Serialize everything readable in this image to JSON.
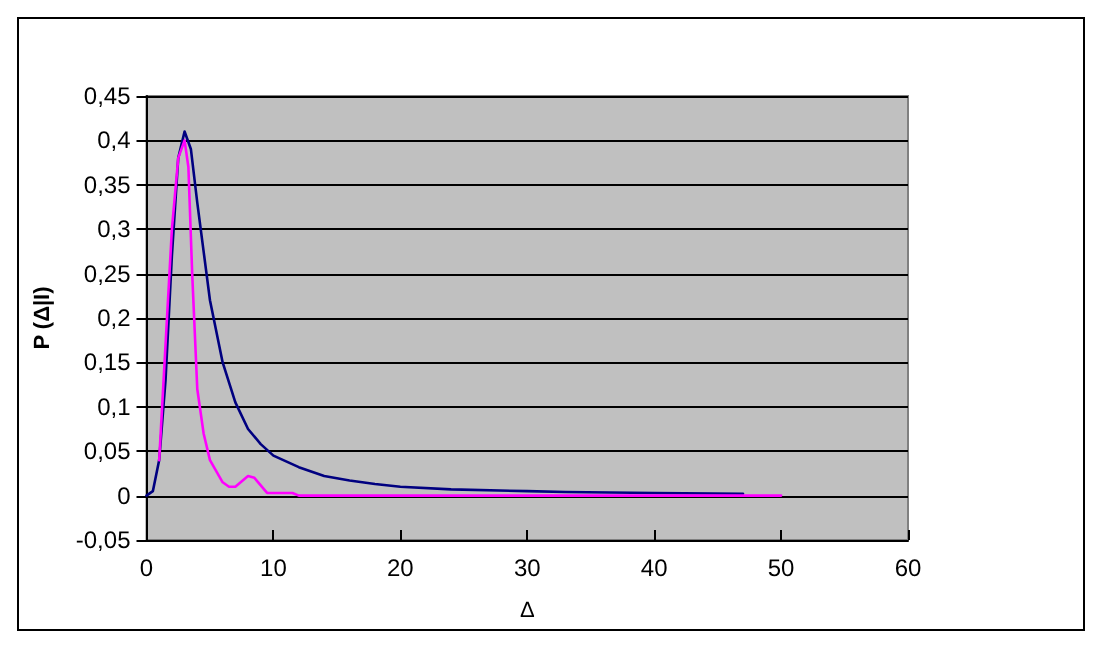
{
  "chart_data": {
    "type": "line",
    "xlabel": "Δ",
    "ylabel": "P (Δ|I)",
    "xlim": [
      0,
      60
    ],
    "xticks": [
      0,
      10,
      20,
      30,
      40,
      50,
      60
    ],
    "ylim": [
      -0.05,
      0.45
    ],
    "yticks": [
      {
        "value": -0.05,
        "label": "-0,05"
      },
      {
        "value": 0,
        "label": "0"
      },
      {
        "value": 0.05,
        "label": "0,05"
      },
      {
        "value": 0.1,
        "label": "0,1"
      },
      {
        "value": 0.15,
        "label": "0,15"
      },
      {
        "value": 0.2,
        "label": "0,2"
      },
      {
        "value": 0.25,
        "label": "0,25"
      },
      {
        "value": 0.3,
        "label": "0,3"
      },
      {
        "value": 0.35,
        "label": "0,35"
      },
      {
        "value": 0.4,
        "label": "0,4"
      },
      {
        "value": 0.45,
        "label": "0,45"
      }
    ],
    "grid": "y",
    "marker": "none",
    "line_style": "solid",
    "series": [
      {
        "color": "#000080",
        "x": [
          0,
          0.5,
          1,
          1.5,
          2,
          2.5,
          3,
          3.5,
          4,
          5,
          6,
          7,
          8,
          9,
          10,
          12,
          14,
          16,
          18,
          20,
          24,
          30,
          33,
          40,
          47
        ],
        "values": [
          0,
          0.005,
          0.04,
          0.13,
          0.27,
          0.38,
          0.41,
          0.39,
          0.33,
          0.22,
          0.15,
          0.105,
          0.075,
          0.058,
          0.045,
          0.032,
          0.022,
          0.017,
          0.013,
          0.01,
          0.007,
          0.005,
          0.004,
          0.003,
          0.002
        ]
      },
      {
        "color": "#ff00ff",
        "x": [
          1,
          1.5,
          2,
          2.5,
          3,
          3.3,
          3.6,
          4,
          4.5,
          5,
          6,
          6.5,
          7,
          8,
          8.5,
          9.5,
          11.5,
          12,
          50
        ],
        "values": [
          0.04,
          0.17,
          0.3,
          0.38,
          0.4,
          0.37,
          0.25,
          0.12,
          0.07,
          0.04,
          0.015,
          0.01,
          0.01,
          0.022,
          0.02,
          0.003,
          0.003,
          0,
          0
        ]
      }
    ]
  }
}
